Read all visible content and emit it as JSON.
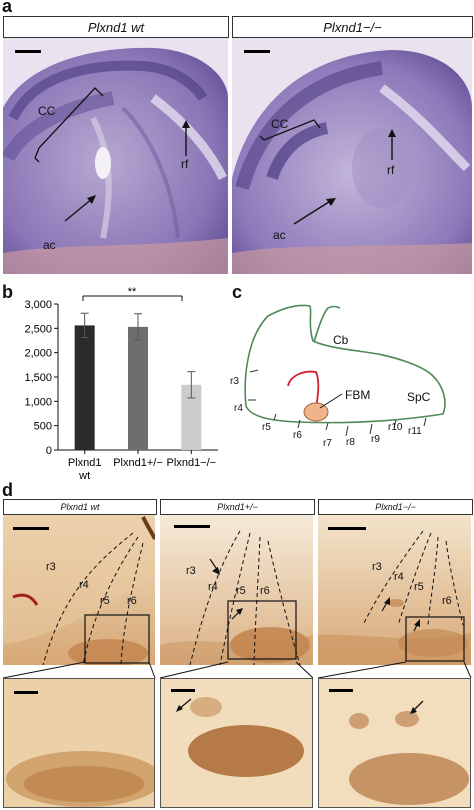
{
  "panel_a": {
    "letter": "a",
    "left_title": "Plxnd1 wt",
    "right_title": "Plxnd1−/−",
    "left_labels": {
      "cc": "CC",
      "rf": "rf",
      "ac": "ac"
    },
    "right_labels": {
      "cc": "CC",
      "rf": "rf",
      "ac": "ac"
    }
  },
  "panel_b": {
    "letter": "b",
    "significance": "**"
  },
  "chart_data": {
    "type": "bar",
    "categories": [
      "Plxnd1 wt",
      "Plxnd1+/−",
      "Plxnd1−/−"
    ],
    "category_lines": [
      [
        "Plxnd1",
        "wt"
      ],
      [
        "Plxnd1+/−"
      ],
      [
        "Plxnd1−/−"
      ]
    ],
    "values": [
      2560,
      2530,
      1340
    ],
    "errors": [
      250,
      270,
      270
    ],
    "colors": [
      "#2b2b2b",
      "#6e6e6e",
      "#cccccc"
    ],
    "ylim": [
      0,
      3000
    ],
    "yticks": [
      "0",
      "500",
      "1,000",
      "1,500",
      "2,000",
      "2,500",
      "3,000"
    ],
    "ytick_values": [
      0,
      500,
      1000,
      1500,
      2000,
      2500,
      3000
    ],
    "title": "",
    "xlabel": "",
    "ylabel": ""
  },
  "panel_c": {
    "letter": "c",
    "labels": {
      "cb": "Cb",
      "fbm": "FBM",
      "spc": "SpC"
    },
    "rhombomeres": [
      "r3",
      "r4",
      "r5",
      "r6",
      "r7",
      "r8",
      "r9",
      "r10",
      "r11"
    ]
  },
  "panel_d": {
    "letter": "d",
    "titles": [
      "Plxnd1 wt",
      "Plxnd1+/−",
      "Plxnd1−/−"
    ],
    "rlabels": [
      "r3",
      "r4",
      "r5",
      "r6"
    ]
  },
  "colors": {
    "stain_purple": "#7a5fa6",
    "dab_brown": "#9a5a22",
    "fbm_fill": "#f0b48a",
    "outline_green": "#4f8a56",
    "red_axon": "#d0202a"
  }
}
